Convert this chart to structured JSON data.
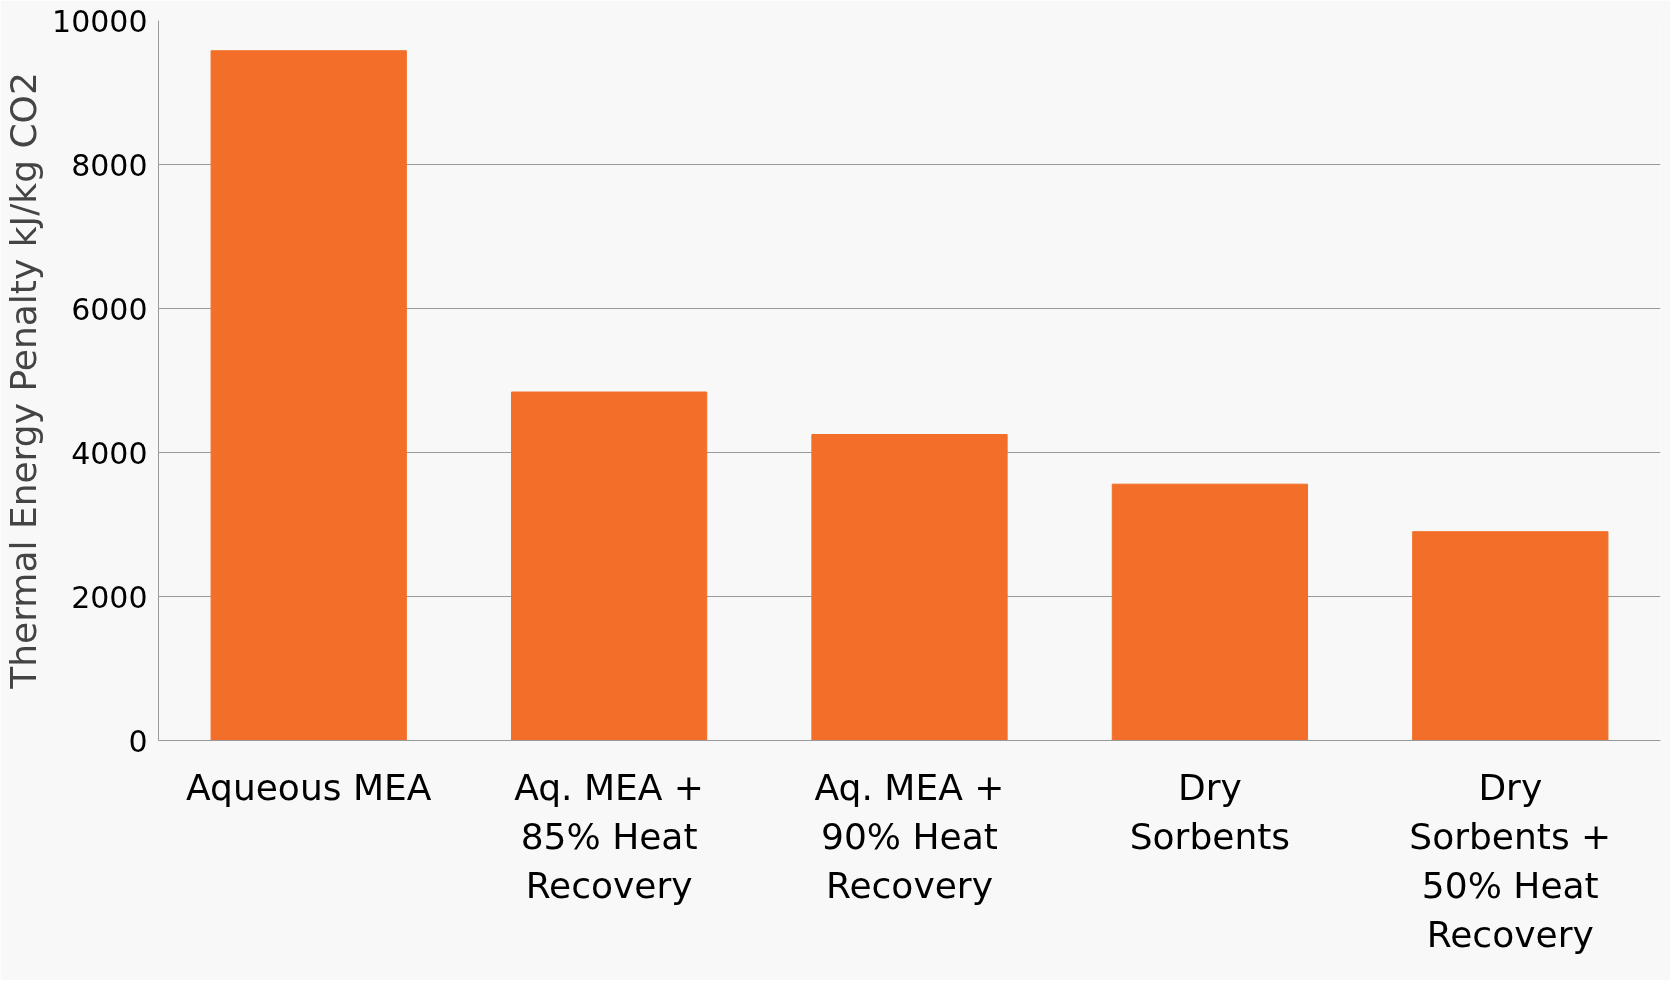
{
  "chart_data": {
    "type": "bar",
    "ylabel": "Thermal Energy Penalty kJ/kg CO2",
    "categories": [
      "Aqueous MEA",
      "Aq. MEA + 85% Heat Recovery",
      "Aq. MEA + 90% Heat Recovery",
      "Dry Sorbents",
      "Dry Sorbents + 50% Heat Recovery"
    ],
    "values": [
      9580,
      4840,
      4250,
      3560,
      2900
    ],
    "color": "#f26e29",
    "ylim": [
      0,
      10000
    ],
    "yticks": [
      0,
      2000,
      4000,
      6000,
      8000,
      10000
    ],
    "grid": "y"
  }
}
